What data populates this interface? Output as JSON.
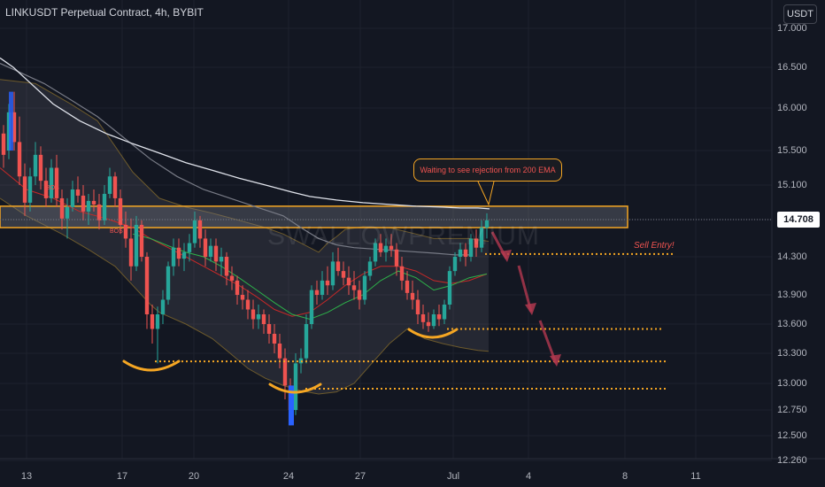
{
  "header": {
    "title": "LINKUSDT Perpetual Contract, 4h, BYBIT",
    "currency_label": "USDT"
  },
  "watermark_text": "SWALLOWPREMIUM",
  "annotations": {
    "callout_text": "Waiting to see rejection from 200 EMA",
    "sell_entry_text": "Sell Entry!",
    "bos_text": "BOS"
  },
  "colors": {
    "background": "#131722",
    "up": "#26a69a",
    "down": "#ef5350",
    "ema200": "#e0e3eb",
    "ema_mid": "#787b86",
    "orange": "#f5a623",
    "green_line": "#2db24a",
    "red_line": "#c62828",
    "arrow": "#b2384f"
  },
  "chart_data": {
    "type": "candlestick",
    "symbol": "LINKUSDT",
    "timeframe": "4h",
    "exchange": "BYBIT",
    "current_price": "14.708",
    "price_ticks": [
      "17.000",
      "16.500",
      "16.000",
      "15.500",
      "15.100",
      "14.708",
      "14.300",
      "13.900",
      "13.600",
      "13.300",
      "13.000",
      "12.750",
      "12.500",
      "12.260"
    ],
    "date_ticks": [
      "13",
      "17",
      "20",
      "24",
      "27",
      "Jul",
      "4",
      "8",
      "11"
    ],
    "resistance_zone": [
      14.62,
      14.86
    ],
    "sell_entry_level": 14.33,
    "target_levels": [
      13.55,
      13.22,
      12.95
    ],
    "ema200_path": [
      [
        0,
        16.62
      ],
      [
        15,
        16.5
      ],
      [
        30,
        16.35
      ],
      [
        60,
        16.05
      ],
      [
        90,
        15.85
      ],
      [
        120,
        15.7
      ],
      [
        150,
        15.58
      ],
      [
        180,
        15.47
      ],
      [
        210,
        15.36
      ],
      [
        240,
        15.27
      ],
      [
        270,
        15.18
      ],
      [
        300,
        15.1
      ],
      [
        330,
        15.02
      ],
      [
        350,
        14.97
      ],
      [
        380,
        14.93
      ],
      [
        410,
        14.9
      ],
      [
        440,
        14.88
      ],
      [
        470,
        14.86
      ],
      [
        500,
        14.85
      ],
      [
        520,
        14.84
      ],
      [
        540,
        14.84
      ],
      [
        553,
        14.83
      ]
    ],
    "ema_mid_path": [
      [
        0,
        16.55
      ],
      [
        20,
        16.45
      ],
      [
        50,
        16.3
      ],
      [
        80,
        16.1
      ],
      [
        110,
        15.9
      ],
      [
        140,
        15.65
      ],
      [
        170,
        15.4
      ],
      [
        200,
        15.2
      ],
      [
        230,
        15.05
      ],
      [
        260,
        14.95
      ],
      [
        290,
        14.85
      ],
      [
        320,
        14.75
      ],
      [
        340,
        14.62
      ],
      [
        360,
        14.5
      ],
      [
        380,
        14.43
      ],
      [
        400,
        14.4
      ],
      [
        430,
        14.38
      ],
      [
        460,
        14.36
      ],
      [
        490,
        14.34
      ],
      [
        515,
        14.32
      ],
      [
        530,
        14.32
      ]
    ],
    "bb_upper": [
      [
        0,
        16.35
      ],
      [
        40,
        16.3
      ],
      [
        80,
        16.05
      ],
      [
        110,
        15.85
      ],
      [
        130,
        15.55
      ],
      [
        150,
        15.25
      ],
      [
        180,
        14.95
      ],
      [
        210,
        14.85
      ],
      [
        240,
        14.78
      ],
      [
        270,
        14.7
      ],
      [
        300,
        14.62
      ],
      [
        320,
        14.55
      ],
      [
        340,
        14.45
      ],
      [
        360,
        14.35
      ],
      [
        370,
        14.45
      ],
      [
        380,
        14.52
      ],
      [
        390,
        14.6
      ],
      [
        410,
        14.63
      ],
      [
        440,
        14.62
      ],
      [
        470,
        14.55
      ],
      [
        490,
        14.5
      ],
      [
        510,
        14.5
      ],
      [
        530,
        14.5
      ],
      [
        552,
        14.47
      ]
    ],
    "bb_lower": [
      [
        0,
        14.95
      ],
      [
        30,
        14.75
      ],
      [
        70,
        14.55
      ],
      [
        100,
        14.38
      ],
      [
        130,
        14.2
      ],
      [
        150,
        14.0
      ],
      [
        170,
        13.8
      ],
      [
        180,
        13.72
      ],
      [
        210,
        13.6
      ],
      [
        240,
        13.45
      ],
      [
        260,
        13.3
      ],
      [
        280,
        13.15
      ],
      [
        300,
        13.05
      ],
      [
        320,
        12.98
      ],
      [
        340,
        12.93
      ],
      [
        360,
        12.9
      ],
      [
        380,
        12.92
      ],
      [
        400,
        13.0
      ],
      [
        420,
        13.2
      ],
      [
        440,
        13.4
      ],
      [
        460,
        13.55
      ],
      [
        480,
        13.45
      ],
      [
        500,
        13.4
      ],
      [
        520,
        13.36
      ],
      [
        540,
        13.33
      ],
      [
        552,
        13.32
      ]
    ],
    "red_ma": [
      [
        0,
        15.3
      ],
      [
        30,
        15.05
      ],
      [
        60,
        14.95
      ],
      [
        90,
        14.8
      ],
      [
        120,
        14.72
      ],
      [
        150,
        14.62
      ],
      [
        170,
        14.5
      ],
      [
        190,
        14.4
      ],
      [
        210,
        14.3
      ],
      [
        230,
        14.2
      ],
      [
        250,
        14.1
      ],
      [
        270,
        14.0
      ],
      [
        290,
        13.88
      ],
      [
        310,
        13.75
      ],
      [
        330,
        13.68
      ],
      [
        350,
        13.72
      ],
      [
        370,
        13.85
      ],
      [
        390,
        14.0
      ],
      [
        410,
        14.12
      ],
      [
        430,
        14.2
      ],
      [
        450,
        14.2
      ],
      [
        470,
        14.15
      ],
      [
        490,
        14.05
      ],
      [
        510,
        14.02
      ],
      [
        530,
        14.05
      ],
      [
        550,
        14.12
      ]
    ],
    "green_ma": [
      [
        150,
        14.55
      ],
      [
        170,
        14.5
      ],
      [
        190,
        14.42
      ],
      [
        210,
        14.35
      ],
      [
        230,
        14.3
      ],
      [
        250,
        14.2
      ],
      [
        270,
        14.08
      ],
      [
        290,
        13.95
      ],
      [
        310,
        13.82
      ],
      [
        330,
        13.7
      ],
      [
        350,
        13.65
      ],
      [
        370,
        13.72
      ],
      [
        390,
        13.82
      ],
      [
        410,
        13.9
      ],
      [
        430,
        14.05
      ],
      [
        450,
        14.15
      ],
      [
        470,
        14.08
      ],
      [
        490,
        13.95
      ],
      [
        510,
        14.0
      ],
      [
        530,
        14.08
      ],
      [
        550,
        14.12
      ]
    ],
    "candles": [
      [
        4,
        15.7,
        15.8,
        15.3,
        15.45
      ],
      [
        10,
        15.5,
        16.05,
        15.4,
        15.95
      ],
      [
        16,
        15.95,
        16.2,
        15.5,
        15.6
      ],
      [
        22,
        15.6,
        15.9,
        15.1,
        15.2
      ],
      [
        28,
        15.2,
        15.35,
        14.75,
        14.9
      ],
      [
        34,
        14.9,
        15.3,
        14.8,
        15.2
      ],
      [
        40,
        15.2,
        15.6,
        15.1,
        15.45
      ],
      [
        46,
        15.45,
        15.55,
        15.05,
        15.15
      ],
      [
        52,
        15.15,
        15.3,
        14.85,
        14.95
      ],
      [
        58,
        14.95,
        15.4,
        14.9,
        15.3
      ],
      [
        64,
        15.3,
        15.45,
        14.85,
        14.95
      ],
      [
        70,
        14.95,
        15.05,
        14.6,
        14.72
      ],
      [
        76,
        14.72,
        14.95,
        14.5,
        14.85
      ],
      [
        82,
        14.85,
        15.15,
        14.8,
        15.05
      ],
      [
        88,
        15.05,
        15.2,
        14.9,
        14.98
      ],
      [
        94,
        14.98,
        15.1,
        14.7,
        14.8
      ],
      [
        100,
        14.8,
        15.0,
        14.65,
        14.92
      ],
      [
        106,
        14.92,
        15.05,
        14.8,
        14.88
      ],
      [
        112,
        14.88,
        15.0,
        14.6,
        14.7
      ],
      [
        118,
        14.7,
        15.1,
        14.65,
        15.0
      ],
      [
        124,
        15.0,
        15.3,
        14.95,
        15.2
      ],
      [
        130,
        15.2,
        15.25,
        14.85,
        14.95
      ],
      [
        136,
        14.95,
        15.05,
        14.55,
        14.65
      ],
      [
        142,
        14.65,
        14.8,
        14.4,
        14.5
      ],
      [
        148,
        14.5,
        14.72,
        14.05,
        14.2
      ],
      [
        154,
        14.2,
        14.75,
        14.15,
        14.65
      ],
      [
        160,
        14.65,
        14.7,
        14.25,
        14.3
      ],
      [
        166,
        14.3,
        14.35,
        13.55,
        13.7
      ],
      [
        172,
        13.7,
        13.8,
        13.4,
        13.55
      ],
      [
        178,
        13.55,
        13.78,
        13.2,
        13.7
      ],
      [
        184,
        13.7,
        13.95,
        13.6,
        13.85
      ],
      [
        190,
        13.85,
        14.25,
        13.8,
        14.2
      ],
      [
        196,
        14.2,
        14.5,
        14.1,
        14.4
      ],
      [
        202,
        14.4,
        14.5,
        14.2,
        14.28
      ],
      [
        208,
        14.28,
        14.45,
        14.15,
        14.35
      ],
      [
        214,
        14.35,
        14.55,
        14.25,
        14.45
      ],
      [
        220,
        14.45,
        14.8,
        14.4,
        14.7
      ],
      [
        226,
        14.7,
        14.75,
        14.4,
        14.5
      ],
      [
        232,
        14.5,
        14.6,
        14.2,
        14.3
      ],
      [
        238,
        14.3,
        14.5,
        14.25,
        14.42
      ],
      [
        244,
        14.42,
        14.5,
        14.15,
        14.25
      ],
      [
        250,
        14.25,
        14.4,
        14.1,
        14.3
      ],
      [
        256,
        14.3,
        14.35,
        14.0,
        14.1
      ],
      [
        262,
        14.1,
        14.2,
        13.95,
        14.05
      ],
      [
        268,
        14.05,
        14.1,
        13.8,
        13.9
      ],
      [
        274,
        13.9,
        14.0,
        13.75,
        13.85
      ],
      [
        280,
        13.85,
        13.95,
        13.65,
        13.75
      ],
      [
        286,
        13.75,
        13.85,
        13.55,
        13.65
      ],
      [
        292,
        13.65,
        13.8,
        13.55,
        13.7
      ],
      [
        298,
        13.7,
        13.75,
        13.5,
        13.6
      ],
      [
        304,
        13.6,
        13.7,
        13.4,
        13.5
      ],
      [
        310,
        13.5,
        13.6,
        13.3,
        13.4
      ],
      [
        316,
        13.4,
        13.5,
        13.15,
        13.25
      ],
      [
        322,
        13.25,
        13.35,
        12.85,
        12.98
      ],
      [
        328,
        12.98,
        13.05,
        12.6,
        12.75
      ],
      [
        334,
        12.75,
        13.3,
        12.7,
        13.2
      ],
      [
        340,
        13.2,
        13.35,
        13.1,
        13.25
      ],
      [
        346,
        13.25,
        13.7,
        13.2,
        13.6
      ],
      [
        352,
        13.6,
        14.0,
        13.55,
        13.95
      ],
      [
        358,
        13.95,
        14.05,
        13.8,
        13.9
      ],
      [
        364,
        13.9,
        14.15,
        13.85,
        14.05
      ],
      [
        370,
        14.05,
        14.2,
        13.9,
        14.0
      ],
      [
        376,
        14.0,
        14.35,
        13.95,
        14.25
      ],
      [
        382,
        14.25,
        14.4,
        14.1,
        14.15
      ],
      [
        388,
        14.15,
        14.25,
        14.0,
        14.08
      ],
      [
        394,
        14.08,
        14.2,
        13.9,
        14.0
      ],
      [
        400,
        14.0,
        14.15,
        13.85,
        13.95
      ],
      [
        406,
        13.95,
        14.05,
        13.75,
        13.85
      ],
      [
        412,
        13.85,
        14.15,
        13.8,
        14.1
      ],
      [
        418,
        14.1,
        14.3,
        14.05,
        14.25
      ],
      [
        424,
        14.25,
        14.5,
        14.2,
        14.45
      ],
      [
        430,
        14.45,
        14.55,
        14.3,
        14.35
      ],
      [
        436,
        14.35,
        14.5,
        14.25,
        14.42
      ],
      [
        442,
        14.42,
        14.55,
        14.3,
        14.38
      ],
      [
        448,
        14.38,
        14.45,
        14.1,
        14.2
      ],
      [
        454,
        14.2,
        14.3,
        13.95,
        14.05
      ],
      [
        460,
        14.05,
        14.15,
        13.85,
        13.92
      ],
      [
        466,
        13.92,
        14.05,
        13.75,
        13.85
      ],
      [
        472,
        13.85,
        13.95,
        13.6,
        13.7
      ],
      [
        478,
        13.7,
        13.8,
        13.55,
        13.62
      ],
      [
        484,
        13.62,
        13.72,
        13.52,
        13.58
      ],
      [
        490,
        13.58,
        13.75,
        13.55,
        13.7
      ],
      [
        496,
        13.7,
        13.8,
        13.58,
        13.65
      ],
      [
        502,
        13.65,
        13.85,
        13.6,
        13.8
      ],
      [
        508,
        13.8,
        14.2,
        13.75,
        14.15
      ],
      [
        514,
        14.15,
        14.35,
        14.1,
        14.3
      ],
      [
        520,
        14.3,
        14.45,
        14.25,
        14.38
      ],
      [
        526,
        14.38,
        14.45,
        14.2,
        14.3
      ],
      [
        532,
        14.3,
        14.55,
        14.25,
        14.5
      ],
      [
        538,
        14.5,
        14.6,
        14.3,
        14.4
      ],
      [
        544,
        14.4,
        14.7,
        14.35,
        14.62
      ],
      [
        550,
        14.62,
        14.78,
        14.5,
        14.7
      ]
    ]
  }
}
